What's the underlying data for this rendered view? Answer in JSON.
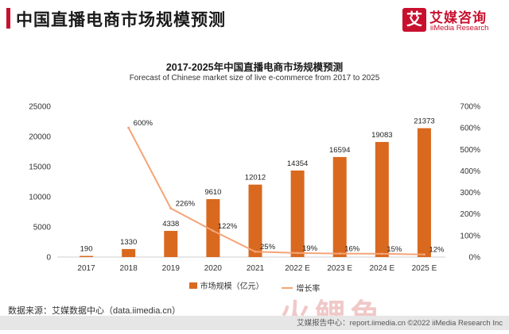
{
  "header": {
    "title": "中国直播电商市场规模预测",
    "accent_color": "#c8102e"
  },
  "logo": {
    "mark": "艾",
    "name_cn": "艾媒咨询",
    "name_en": "iiMedia Research"
  },
  "chart_data": {
    "type": "bar",
    "title": "2017-2025年中国直播电商市场规模预测",
    "subtitle": "Forecast of Chinese market size of live e-commerce from 2017 to 2025",
    "categories": [
      "2017",
      "2018",
      "2019",
      "2020",
      "2021",
      "2022 E",
      "2023 E",
      "2024 E",
      "2025 E"
    ],
    "series": [
      {
        "name": "市场规模（亿元）",
        "type": "bar",
        "axis": "left",
        "color": "#d9691f",
        "values": [
          190,
          1330,
          4338,
          9610,
          12012,
          14354,
          16594,
          19083,
          21373
        ],
        "labels": [
          "190",
          "1330",
          "4338",
          "9610",
          "12012",
          "14354",
          "16594",
          "19083",
          "21373"
        ]
      },
      {
        "name": "增长率",
        "type": "line",
        "axis": "right",
        "color": "#f4a477",
        "values": [
          null,
          600,
          226,
          122,
          25,
          19,
          16,
          15,
          12
        ],
        "labels": [
          "",
          "600%",
          "226%",
          "122%",
          "25%",
          "19%",
          "16%",
          "15%",
          "12%"
        ]
      }
    ],
    "y_left": {
      "min": 0,
      "max": 25000,
      "ticks": [
        "0",
        "5000",
        "10000",
        "15000",
        "20000",
        "25000"
      ]
    },
    "y_right": {
      "min": 0,
      "max": 700,
      "ticks": [
        "0%",
        "100%",
        "200%",
        "300%",
        "400%",
        "500%",
        "600%",
        "700%"
      ]
    },
    "grid": false,
    "legend_position": "bottom"
  },
  "source": "数据来源：艾媒数据中心（data.iimedia.cn）",
  "watermark": "火鲤鱼",
  "footer": "艾媒报告中心：report.iimedia.cn ©2022 iiMedia Research Inc"
}
